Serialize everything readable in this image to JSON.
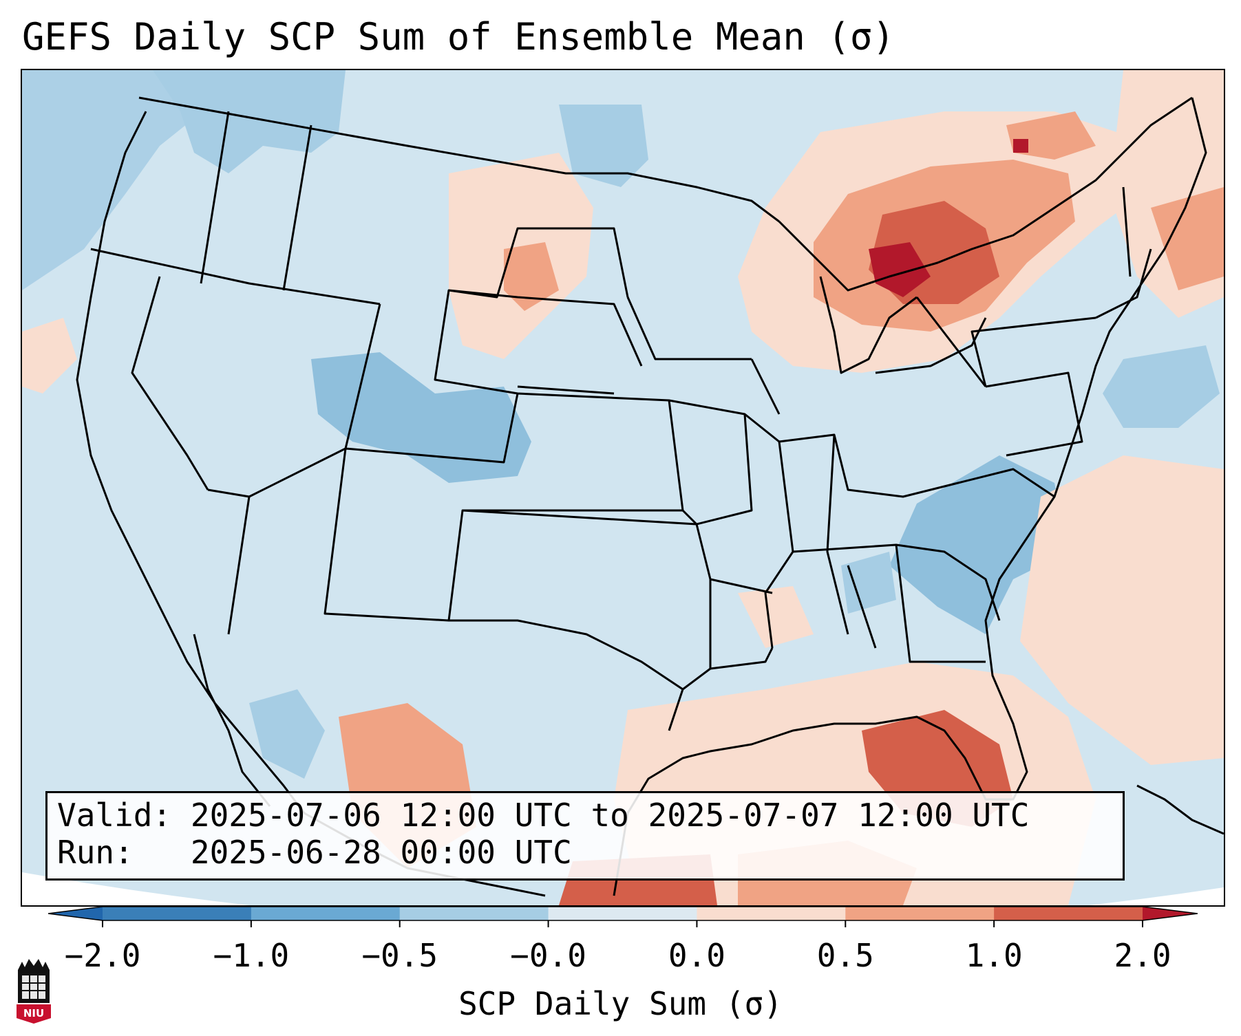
{
  "title": "GEFS Daily SCP Sum of Ensemble Mean (σ)",
  "map": {
    "region": "Contiguous United States",
    "variable": "SCP Daily Sum (σ)",
    "anomaly_regions": [
      {
        "name": "Great Lakes / Southern Ontario",
        "level": 2.0
      },
      {
        "name": "Upper Midwest (Wisconsin / Michigan)",
        "level": 1.0
      },
      {
        "name": "Northern Maine / Quebec",
        "level": 0.5
      },
      {
        "name": "New England / Mid-Atlantic Atlantic",
        "level": 0.5
      },
      {
        "name": "Eastern Gulf of Mexico / Florida",
        "level": 1.0
      },
      {
        "name": "Northern Gulf Coast",
        "level": 0.5
      },
      {
        "name": "Western Mexico / Sierra Madre",
        "level": 0.5
      },
      {
        "name": "Northern Plains (Dakotas)",
        "level": 0.5
      },
      {
        "name": "Carolinas / Virginia",
        "level": -0.5
      },
      {
        "name": "Colorado / Utah",
        "level": -0.5
      },
      {
        "name": "Pacific Northwest",
        "level": -0.5
      },
      {
        "name": "Western Atlantic offshore",
        "level": -0.5
      }
    ]
  },
  "info": {
    "valid_label": "Valid:",
    "valid_value": "2025-07-06 12:00 UTC to 2025-07-07 12:00 UTC",
    "run_label": "Run:",
    "run_value": "2025-06-28 00:00 UTC"
  },
  "colorbar": {
    "bounds": [
      -2.0,
      -1.0,
      -0.5,
      -0.0,
      0.0,
      0.5,
      1.0,
      2.0
    ],
    "tick_labels": [
      "−2.0",
      "−1.0",
      "−0.5",
      "−0.0",
      "0.0",
      "0.5",
      "1.0",
      "2.0"
    ],
    "colors": [
      "#3a7fb8",
      "#6aa9d3",
      "#a6cde4",
      "#dde9f1",
      "#f9ddcf",
      "#f0a384",
      "#d45f4a"
    ],
    "extend_low_color": "#2166ac",
    "extend_high_color": "#b2182b",
    "label": "SCP Daily Sum (σ)"
  },
  "logo": {
    "text": "NIU",
    "icon": "niu-logo-icon"
  }
}
